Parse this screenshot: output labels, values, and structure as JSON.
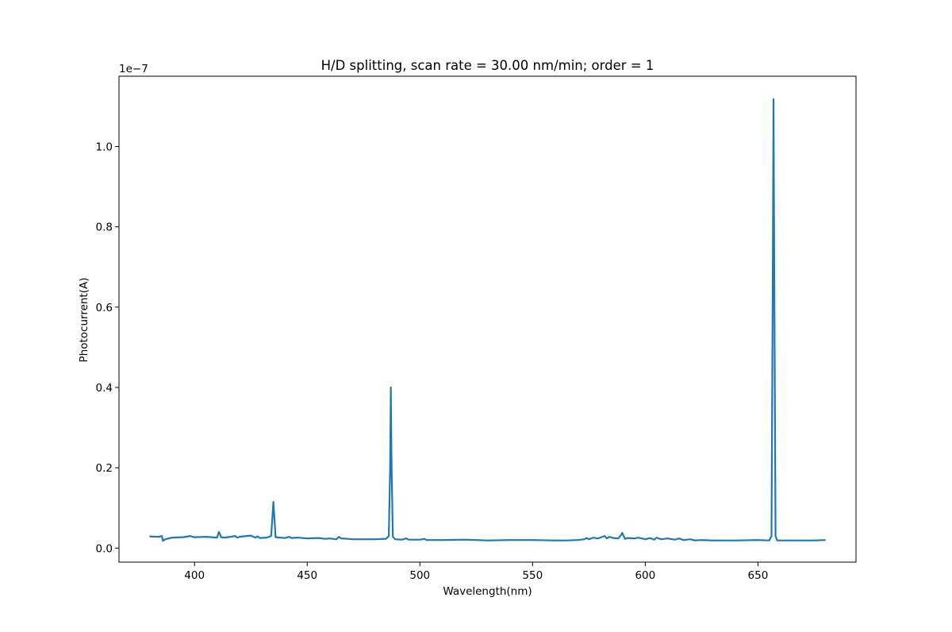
{
  "chart_data": {
    "type": "line",
    "title": "H/D splitting, scan rate = 30.00 nm/min; order = 1",
    "xlabel": "Wavelength(nm)",
    "ylabel": "Photocurrent(A)",
    "y_offset_label": "1e−7",
    "y_scale": 1e-07,
    "xlim": [
      366.5,
      693.5
    ],
    "ylim": [
      -0.035,
      1.175
    ],
    "x_ticks": [
      400,
      450,
      500,
      550,
      600,
      650
    ],
    "x_tick_labels": [
      "400",
      "450",
      "500",
      "550",
      "600",
      "650"
    ],
    "y_ticks": [
      0.0,
      0.2,
      0.4,
      0.6,
      0.8,
      1.0
    ],
    "y_tick_labels": [
      "0.0",
      "0.2",
      "0.4",
      "0.6",
      "0.8",
      "1.0"
    ],
    "grid": false,
    "legend": "none",
    "colors": {
      "line": "#1f77b4",
      "axes": "#000000",
      "background": "#ffffff"
    },
    "series": [
      {
        "x": [
          380,
          384,
          385.5,
          386,
          387,
          390,
          395,
          398,
          400,
          405,
          410,
          410.8,
          411.3,
          411.8,
          413,
          416,
          418,
          419,
          420,
          423,
          425,
          427,
          428,
          429,
          432,
          434,
          434.6,
          435,
          435.4,
          436,
          440,
          442,
          443,
          446,
          450,
          455,
          458,
          460,
          463,
          464,
          465,
          468,
          470,
          475,
          480,
          485,
          486.2,
          486.8,
          487.1,
          487.4,
          488,
          489,
          492,
          494,
          495,
          500,
          502,
          503,
          510,
          520,
          530,
          540,
          550,
          560,
          565,
          570,
          573,
          574,
          575,
          577,
          579,
          581,
          582,
          583,
          584,
          586,
          588,
          589.2,
          589.8,
          590.4,
          591,
          592,
          595,
          597,
          600,
          602,
          604,
          605,
          607,
          610,
          613,
          615,
          617,
          620,
          622,
          625,
          630,
          640,
          650,
          655,
          656,
          656.6,
          656.9,
          657.2,
          657.8,
          658.5,
          660,
          665,
          670,
          675,
          680
        ],
        "y": [
          0.029,
          0.028,
          0.03,
          0.018,
          0.022,
          0.026,
          0.027,
          0.03,
          0.027,
          0.028,
          0.026,
          0.04,
          0.035,
          0.027,
          0.026,
          0.028,
          0.03,
          0.026,
          0.028,
          0.03,
          0.031,
          0.026,
          0.029,
          0.025,
          0.026,
          0.03,
          0.08,
          0.115,
          0.08,
          0.027,
          0.025,
          0.028,
          0.025,
          0.026,
          0.024,
          0.025,
          0.023,
          0.024,
          0.022,
          0.028,
          0.024,
          0.023,
          0.022,
          0.022,
          0.022,
          0.023,
          0.03,
          0.2,
          0.4,
          0.22,
          0.028,
          0.022,
          0.021,
          0.024,
          0.021,
          0.021,
          0.023,
          0.02,
          0.02,
          0.021,
          0.019,
          0.02,
          0.02,
          0.019,
          0.019,
          0.02,
          0.022,
          0.025,
          0.022,
          0.026,
          0.024,
          0.028,
          0.03,
          0.024,
          0.028,
          0.025,
          0.024,
          0.032,
          0.038,
          0.03,
          0.023,
          0.025,
          0.024,
          0.026,
          0.022,
          0.025,
          0.021,
          0.026,
          0.022,
          0.024,
          0.021,
          0.024,
          0.02,
          0.022,
          0.019,
          0.02,
          0.019,
          0.019,
          0.02,
          0.019,
          0.03,
          0.7,
          1.118,
          0.72,
          0.03,
          0.019,
          0.019,
          0.019,
          0.019,
          0.019,
          0.02
        ]
      }
    ]
  }
}
